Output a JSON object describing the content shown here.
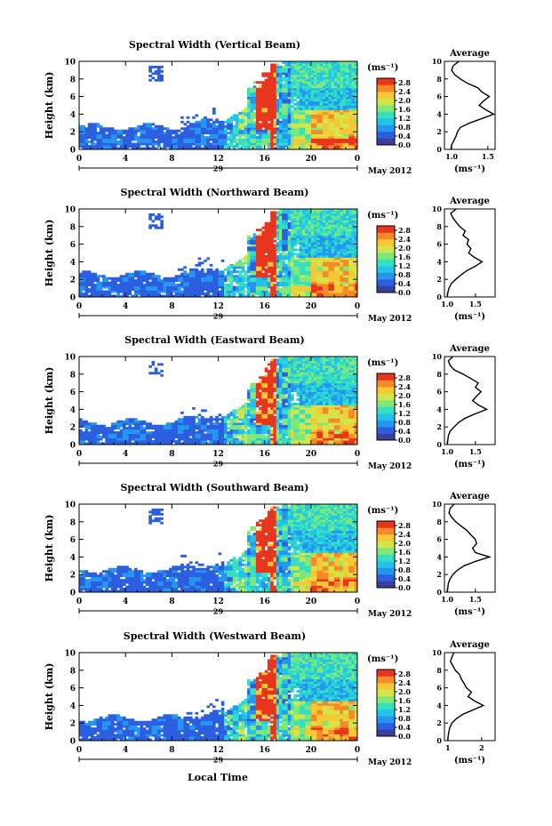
{
  "figure": {
    "date_label": "May 2012",
    "xlabel": "Local Time",
    "unit_label": "(ms⁻¹)",
    "avg_title": "Average",
    "avg_xlabel": "(ms⁻¹)",
    "colormap": [
      "#3a3f9a",
      "#2c5fe0",
      "#2596f0",
      "#22c3e8",
      "#35e0c0",
      "#7fe87a",
      "#d2e64a",
      "#f7c836",
      "#f78a28",
      "#e8361e"
    ]
  },
  "chart_data": [
    {
      "type": "heatmap",
      "title": "Spectral Width (Vertical Beam)",
      "xlabel": "",
      "ylabel": "Height (km)",
      "x_ticks": [
        "0",
        "4",
        "8",
        "12",
        "16",
        "20",
        "0"
      ],
      "x_range": [
        0,
        24
      ],
      "day_label": "29",
      "y_ticks": [
        "0",
        "2",
        "4",
        "6",
        "8",
        "10"
      ],
      "ylim": [
        0,
        10
      ],
      "colorbar": {
        "ticks": [
          "0.0",
          "0.4",
          "0.8",
          "1.2",
          "1.6",
          "2.0",
          "2.4",
          "2.8"
        ],
        "range": [
          0,
          3.0
        ]
      },
      "average_profile": {
        "xlim": [
          0.9,
          1.6
        ],
        "x_ticks": [
          "1.0",
          "1.5"
        ],
        "y_ticks": [
          "0",
          "2",
          "4",
          "6",
          "8",
          "10"
        ],
        "heights": [
          0,
          0.5,
          1,
          1.5,
          2,
          2.5,
          3,
          3.5,
          4,
          4.5,
          5,
          5.5,
          6,
          6.5,
          7,
          7.5,
          8,
          8.5,
          9,
          9.5,
          10
        ],
        "values": [
          0.99,
          1.0,
          1.03,
          1.06,
          1.08,
          1.12,
          1.25,
          1.42,
          1.58,
          1.47,
          1.38,
          1.44,
          1.52,
          1.42,
          1.36,
          1.22,
          1.12,
          1.04,
          1.0,
          1.02,
          1.1
        ]
      }
    },
    {
      "type": "heatmap",
      "title": "Spectral Width (Northward Beam)",
      "xlabel": "",
      "ylabel": "Height (km)",
      "x_ticks": [
        "0",
        "4",
        "8",
        "12",
        "16",
        "20",
        "0"
      ],
      "x_range": [
        0,
        24
      ],
      "day_label": "29",
      "y_ticks": [
        "0",
        "2",
        "4",
        "6",
        "8",
        "10"
      ],
      "ylim": [
        0,
        10
      ],
      "colorbar": {
        "ticks": [
          "0.0",
          "0.4",
          "0.8",
          "1.2",
          "1.6",
          "2.0",
          "2.4",
          "2.8"
        ],
        "range": [
          0,
          3.0
        ]
      },
      "average_profile": {
        "xlim": [
          0.95,
          1.85
        ],
        "x_ticks": [
          "1.0",
          "1.5"
        ],
        "y_ticks": [
          "0",
          "2",
          "4",
          "6",
          "8",
          "10"
        ],
        "heights": [
          0,
          0.5,
          1,
          1.5,
          2,
          2.5,
          3,
          3.5,
          4,
          4.5,
          5,
          5.5,
          6,
          6.5,
          7,
          7.5,
          8,
          8.5,
          9,
          9.5,
          10
        ],
        "values": [
          1.0,
          1.01,
          1.03,
          1.07,
          1.15,
          1.24,
          1.35,
          1.5,
          1.62,
          1.48,
          1.38,
          1.42,
          1.35,
          1.38,
          1.28,
          1.32,
          1.22,
          1.16,
          1.1,
          1.06,
          1.16
        ]
      }
    },
    {
      "type": "heatmap",
      "title": "Spectral Width (Eastward Beam)",
      "xlabel": "",
      "ylabel": "Height (km)",
      "x_ticks": [
        "0",
        "4",
        "8",
        "12",
        "16",
        "20",
        "0"
      ],
      "x_range": [
        0,
        24
      ],
      "day_label": "29",
      "y_ticks": [
        "0",
        "2",
        "4",
        "6",
        "8",
        "10"
      ],
      "ylim": [
        0,
        10
      ],
      "colorbar": {
        "ticks": [
          "0.0",
          "0.4",
          "0.8",
          "1.2",
          "1.6",
          "2.0",
          "2.4",
          "2.8"
        ],
        "range": [
          0,
          3.0
        ]
      },
      "average_profile": {
        "xlim": [
          0.95,
          1.85
        ],
        "x_ticks": [
          "1.0",
          "1.5"
        ],
        "y_ticks": [
          "0",
          "2",
          "4",
          "6",
          "8",
          "10"
        ],
        "heights": [
          0,
          0.5,
          1,
          1.5,
          2,
          2.5,
          3,
          3.5,
          4,
          4.5,
          5,
          5.5,
          6,
          6.5,
          7,
          7.5,
          8,
          8.5,
          9,
          9.5,
          10
        ],
        "values": [
          1.0,
          1.01,
          1.02,
          1.05,
          1.12,
          1.2,
          1.32,
          1.5,
          1.7,
          1.55,
          1.45,
          1.52,
          1.6,
          1.5,
          1.55,
          1.42,
          1.28,
          1.12,
          1.05,
          1.02,
          1.1
        ]
      }
    },
    {
      "type": "heatmap",
      "title": "Spectral Width (Southward Beam)",
      "xlabel": "",
      "ylabel": "Height (km)",
      "x_ticks": [
        "0",
        "4",
        "8",
        "12",
        "16",
        "20",
        "0"
      ],
      "x_range": [
        0,
        24
      ],
      "day_label": "29",
      "y_ticks": [
        "0",
        "2",
        "4",
        "6",
        "8",
        "10"
      ],
      "ylim": [
        0,
        10
      ],
      "colorbar": {
        "ticks": [
          "0.0",
          "0.4",
          "0.8",
          "1.2",
          "1.6",
          "2.0",
          "2.4",
          "2.8"
        ],
        "range": [
          0,
          3.0
        ]
      },
      "average_profile": {
        "xlim": [
          0.95,
          1.85
        ],
        "x_ticks": [
          "1.0",
          "1.5"
        ],
        "y_ticks": [
          "0",
          "2",
          "4",
          "6",
          "8",
          "10"
        ],
        "heights": [
          0,
          0.5,
          1,
          1.5,
          2,
          2.5,
          3,
          3.5,
          4,
          4.5,
          5,
          5.5,
          6,
          6.5,
          7,
          7.5,
          8,
          8.5,
          9,
          9.5,
          10
        ],
        "values": [
          1.0,
          1.01,
          1.02,
          1.05,
          1.1,
          1.18,
          1.3,
          1.5,
          1.75,
          1.5,
          1.45,
          1.52,
          1.5,
          1.42,
          1.35,
          1.25,
          1.15,
          1.08,
          1.03,
          1.05,
          1.12
        ]
      }
    },
    {
      "type": "heatmap",
      "title": "Spectral Width (Westward Beam)",
      "xlabel": "Local Time",
      "ylabel": "Height (km)",
      "x_ticks": [
        "0",
        "4",
        "8",
        "12",
        "16",
        "20",
        "0"
      ],
      "x_range": [
        0,
        24
      ],
      "day_label": "29",
      "y_ticks": [
        "0",
        "2",
        "4",
        "6",
        "8",
        "10"
      ],
      "ylim": [
        0,
        10
      ],
      "colorbar": {
        "ticks": [
          "0.0",
          "0.4",
          "0.8",
          "1.2",
          "1.6",
          "2.0",
          "2.4",
          "2.8"
        ],
        "range": [
          0,
          3.0
        ]
      },
      "average_profile": {
        "xlim": [
          0.9,
          2.4
        ],
        "x_ticks": [
          "1",
          "2"
        ],
        "y_ticks": [
          "0",
          "2",
          "4",
          "6",
          "8",
          "10"
        ],
        "heights": [
          0,
          0.5,
          1,
          1.5,
          2,
          2.5,
          3,
          3.5,
          4,
          4.5,
          5,
          5.5,
          6,
          6.5,
          7,
          7.5,
          8,
          8.5,
          9,
          9.5,
          10
        ],
        "values": [
          1.0,
          1.01,
          1.03,
          1.06,
          1.12,
          1.25,
          1.45,
          1.75,
          2.05,
          1.8,
          1.6,
          1.7,
          1.55,
          1.48,
          1.4,
          1.35,
          1.22,
          1.15,
          1.08,
          1.12,
          1.18
        ]
      }
    }
  ]
}
